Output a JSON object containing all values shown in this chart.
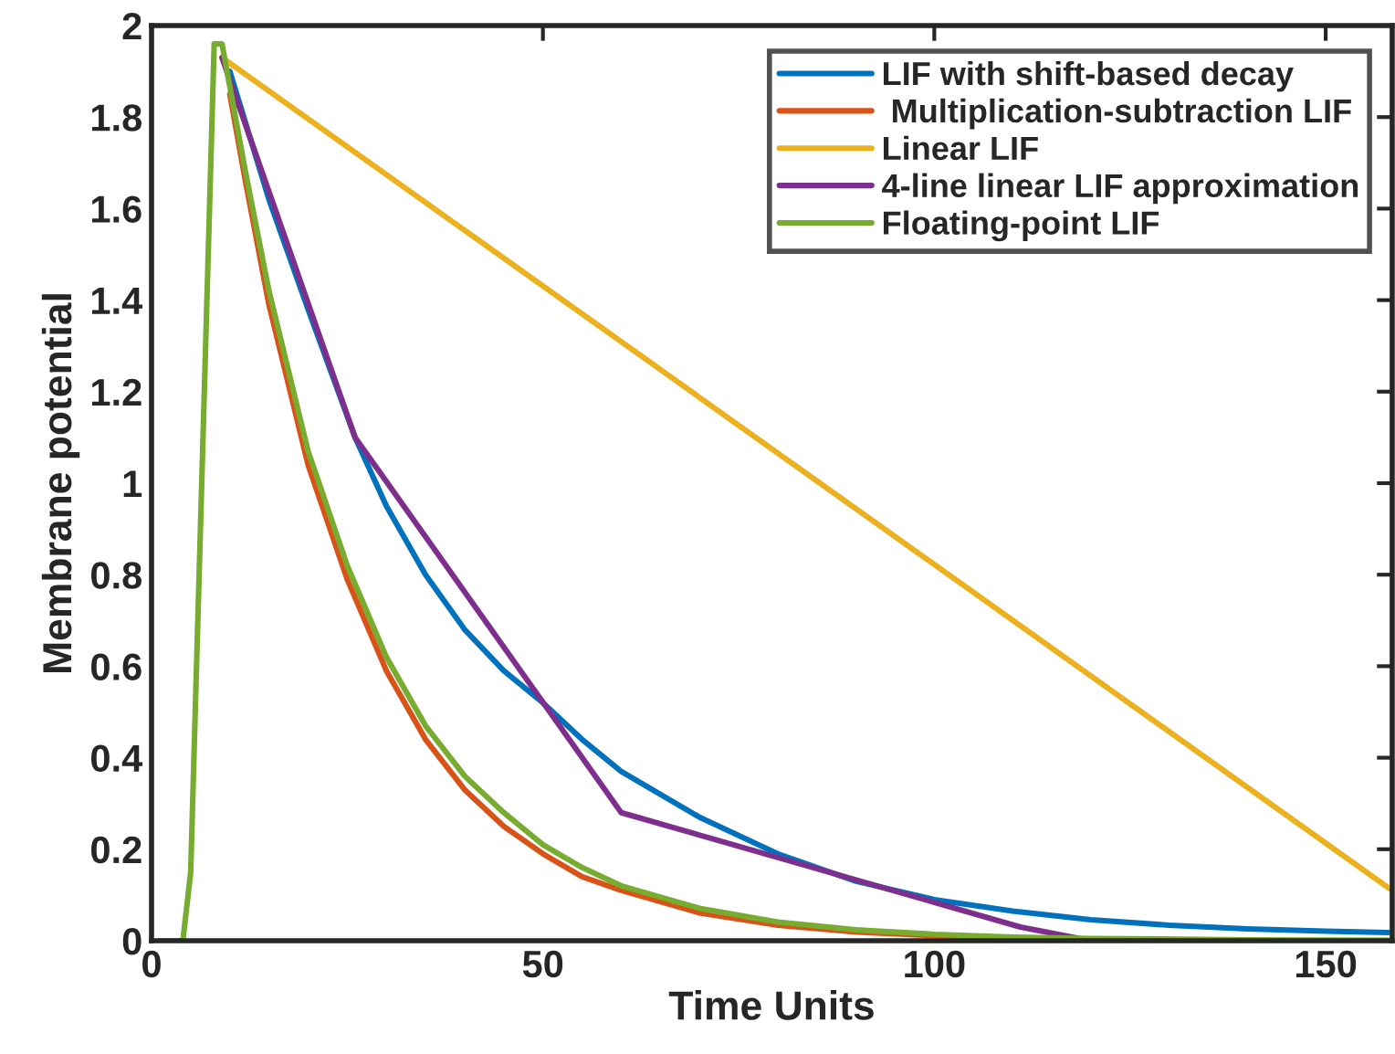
{
  "chart_data": {
    "type": "line",
    "xlabel": "Time Units",
    "ylabel": "Membrane potential",
    "xlim": [
      0,
      158.5
    ],
    "ylim": [
      0,
      2
    ],
    "xticks": [
      0,
      50,
      100,
      150
    ],
    "yticks": [
      0,
      0.2,
      0.4,
      0.6,
      0.8,
      1,
      1.2,
      1.4,
      1.6,
      1.8,
      2
    ],
    "grid": false,
    "legend": "top right",
    "marker": "none",
    "line_style": "solid",
    "series": [
      {
        "name": "LIF with shift-based decay",
        "color": "#0072bd",
        "x": [
          10,
          15,
          20,
          26,
          30,
          35,
          40,
          45,
          50,
          55,
          60,
          70,
          80,
          90,
          100,
          110,
          120,
          130,
          140,
          150,
          158
        ],
        "values": [
          1.9,
          1.62,
          1.38,
          1.1,
          0.95,
          0.8,
          0.68,
          0.59,
          0.52,
          0.44,
          0.37,
          0.27,
          0.19,
          0.13,
          0.09,
          0.065,
          0.046,
          0.034,
          0.026,
          0.021,
          0.018
        ]
      },
      {
        "name": " Multiplication-subtraction LIF",
        "color": "#d95319",
        "x": [
          10,
          12,
          15,
          20,
          25,
          30,
          35,
          40,
          45,
          50,
          55,
          60,
          70,
          80,
          90,
          100,
          110
        ],
        "values": [
          1.85,
          1.66,
          1.39,
          1.04,
          0.79,
          0.59,
          0.44,
          0.33,
          0.25,
          0.19,
          0.14,
          0.11,
          0.061,
          0.034,
          0.019,
          0.011,
          0.006
        ]
      },
      {
        "name": "Linear LIF",
        "color": "#edb120",
        "x": [
          9,
          158.5
        ],
        "values": [
          1.93,
          0.11
        ]
      },
      {
        "name": "4-line linear LIF approximation",
        "color": "#7e2f8e",
        "x": [
          9,
          26,
          60,
          111,
          120
        ],
        "values": [
          1.93,
          1.1,
          0.28,
          0.03,
          0
        ]
      },
      {
        "name": "Floating-point LIF",
        "color": "#77ac30",
        "x": [
          1,
          4,
          5,
          8,
          9,
          12,
          15,
          20,
          25,
          30,
          35,
          40,
          45,
          50,
          55,
          60,
          70,
          80,
          90,
          100,
          110,
          120,
          140,
          158
        ],
        "values": [
          0,
          0,
          0.15,
          1.96,
          1.96,
          1.68,
          1.42,
          1.07,
          0.82,
          0.62,
          0.47,
          0.36,
          0.28,
          0.21,
          0.16,
          0.12,
          0.071,
          0.041,
          0.024,
          0.014,
          0.008,
          0.005,
          0.002,
          0.001
        ]
      }
    ]
  }
}
